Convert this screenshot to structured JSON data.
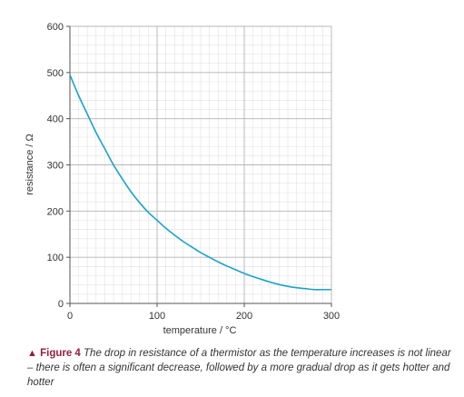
{
  "chart_data": {
    "type": "line",
    "xlabel": "temperature / °C",
    "ylabel": "resistance / Ω",
    "xlim": [
      0,
      300
    ],
    "ylim": [
      0,
      600
    ],
    "x_ticks": [
      0,
      100,
      200,
      300
    ],
    "y_ticks": [
      0,
      100,
      200,
      300,
      400,
      500,
      600
    ],
    "grid": true,
    "x_minor_step": 10,
    "y_minor_step": 20,
    "line_color": "#1aa3cc",
    "series": [
      {
        "x": [
          0,
          10,
          20,
          30,
          40,
          50,
          60,
          70,
          80,
          90,
          100,
          110,
          120,
          130,
          140,
          150,
          160,
          170,
          180,
          190,
          200,
          210,
          220,
          230,
          240,
          250,
          260,
          270,
          280,
          290,
          300
        ],
        "values": [
          495,
          450,
          410,
          370,
          335,
          300,
          270,
          242,
          218,
          197,
          180,
          163,
          148,
          134,
          122,
          110,
          100,
          90,
          81,
          73,
          65,
          58,
          52,
          46,
          41,
          37,
          34,
          32,
          30,
          30,
          30
        ]
      }
    ]
  },
  "caption": {
    "marker": "▲",
    "label": "Figure 4",
    "text": "The drop in resistance of a thermistor as the temperature increases is not linear – there is often a significant decrease, followed by a more gradual drop as it gets hotter and hotter"
  },
  "colors": {
    "major_grid": "#b5b5b5",
    "minor_grid": "#e2e2e2",
    "axis": "#555555",
    "caption_accent": "#9a1f3b"
  }
}
